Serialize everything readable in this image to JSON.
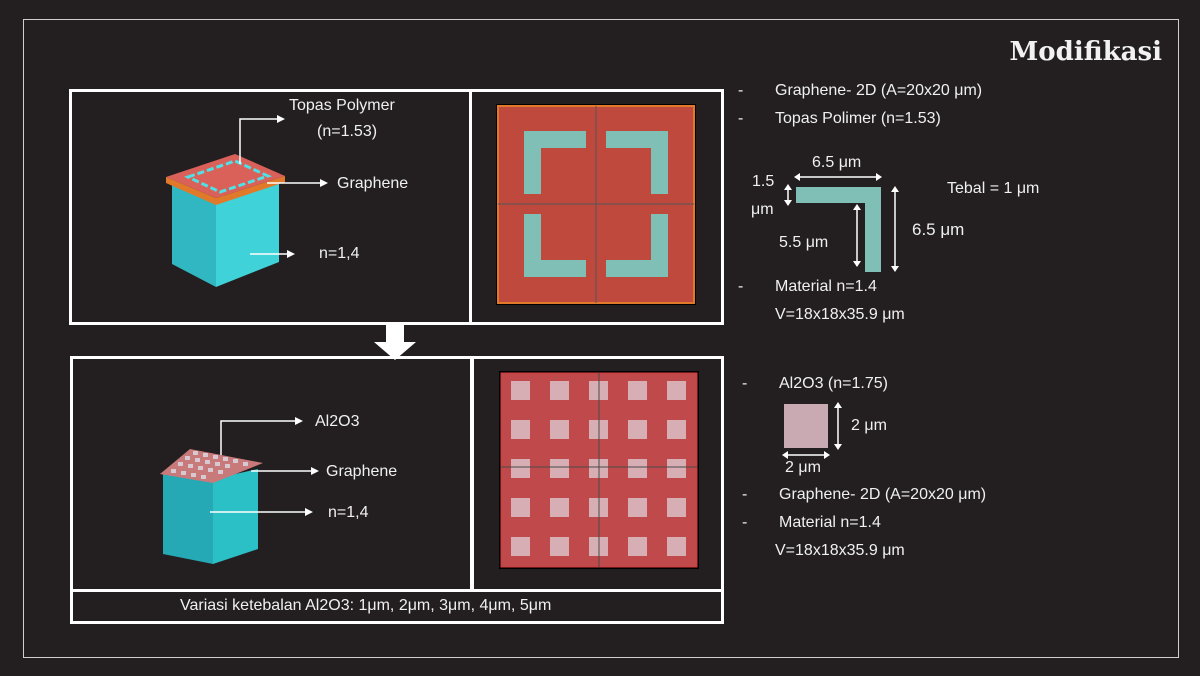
{
  "title": "Modifikasi",
  "top_panel": {
    "label_topas_line1": "Topas Polymer",
    "label_topas_line2": "(n=1.53)",
    "label_graphene": "Graphene",
    "label_n": "n=1,4"
  },
  "bottom_panel": {
    "label_al2o3": "Al2O3",
    "label_graphene": "Graphene",
    "label_n": "n=1,4",
    "caption": "Variasi ketebalan Al2O3: 1μm, 2μm, 3μm, 4μm, 5μm"
  },
  "right_top": {
    "bullet1": "Graphene-  2D (A=20x20 μm)",
    "bullet2": "Topas Polimer (n=1.53)",
    "dim_width": "6.5 μm",
    "dim_thick_line1": "1.5",
    "dim_thick_line2": "μm",
    "dim_inner": "5.5 μm",
    "dim_height": "6.5 μm",
    "tebal": "Tebal = 1 μm",
    "bullet3_line1": "Material n=1.4",
    "bullet3_line2": "V=18x18x35.9 μm"
  },
  "right_bottom": {
    "bullet1": "Al2O3 (n=1.75)",
    "dim_side": "2 μm",
    "dim_bottom": "2 μm",
    "bullet2": "Graphene-  2D (A=20x20 μm)",
    "bullet3_line1": "Material n=1.4",
    "bullet3_line2": "V=18x18x35.9 μm"
  },
  "colors": {
    "background": "#231f20",
    "graphene_red": "#c0493d",
    "teal": "#7fbfb5",
    "cube_cyan": "#3ec9d0",
    "al2o3": "#c9aab2"
  }
}
